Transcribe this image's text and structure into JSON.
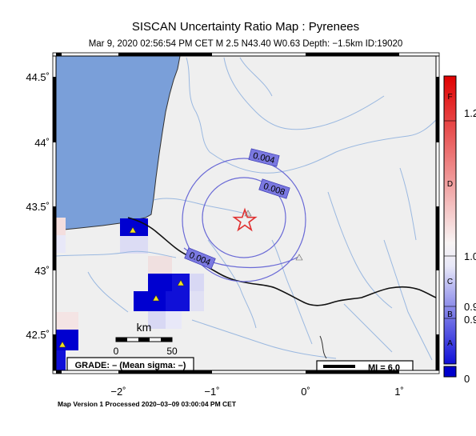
{
  "title": "SISCAN Uncertainty Ratio Map : Pyrenees",
  "subtitle": "Mar  9, 2020 02:56:54 PM CET   M 2.5   N43.40 W0.63   Depth: −1.5km   ID:19020",
  "lat_labels": [
    "44.5˚",
    "44˚",
    "43.5˚",
    "43˚",
    "42.5˚"
  ],
  "lon_labels": [
    "−2˚",
    "−1˚",
    "0˚",
    "1˚"
  ],
  "contour_labels": [
    "0.004",
    "0.008",
    "0.004"
  ],
  "scale": {
    "unit": "km",
    "min": "0",
    "max": "50"
  },
  "grade_box": "GRADE: – (Mean sigma: –)",
  "mi_box": "MI = 6.0",
  "footer": "Map Version 1 Processed 2020–03–09 03:00:04 PM CET",
  "colorbar": {
    "grades": [
      "F",
      "D",
      "C",
      "B",
      "A"
    ],
    "values": [
      "1.2",
      "1.0",
      "0.9",
      "0.9",
      "0"
    ],
    "colors": {
      "high": "#e00000",
      "mid": "#f4f4f4",
      "low": "#1010d8",
      "bottom": "#0000cc"
    }
  },
  "colors": {
    "sea": "#7a9fd9",
    "land": "#efefef",
    "river": "#9ab8e0",
    "contour": "#6a6ad6",
    "label_fill": "#7a78e0",
    "epicenter": "#e03030"
  }
}
